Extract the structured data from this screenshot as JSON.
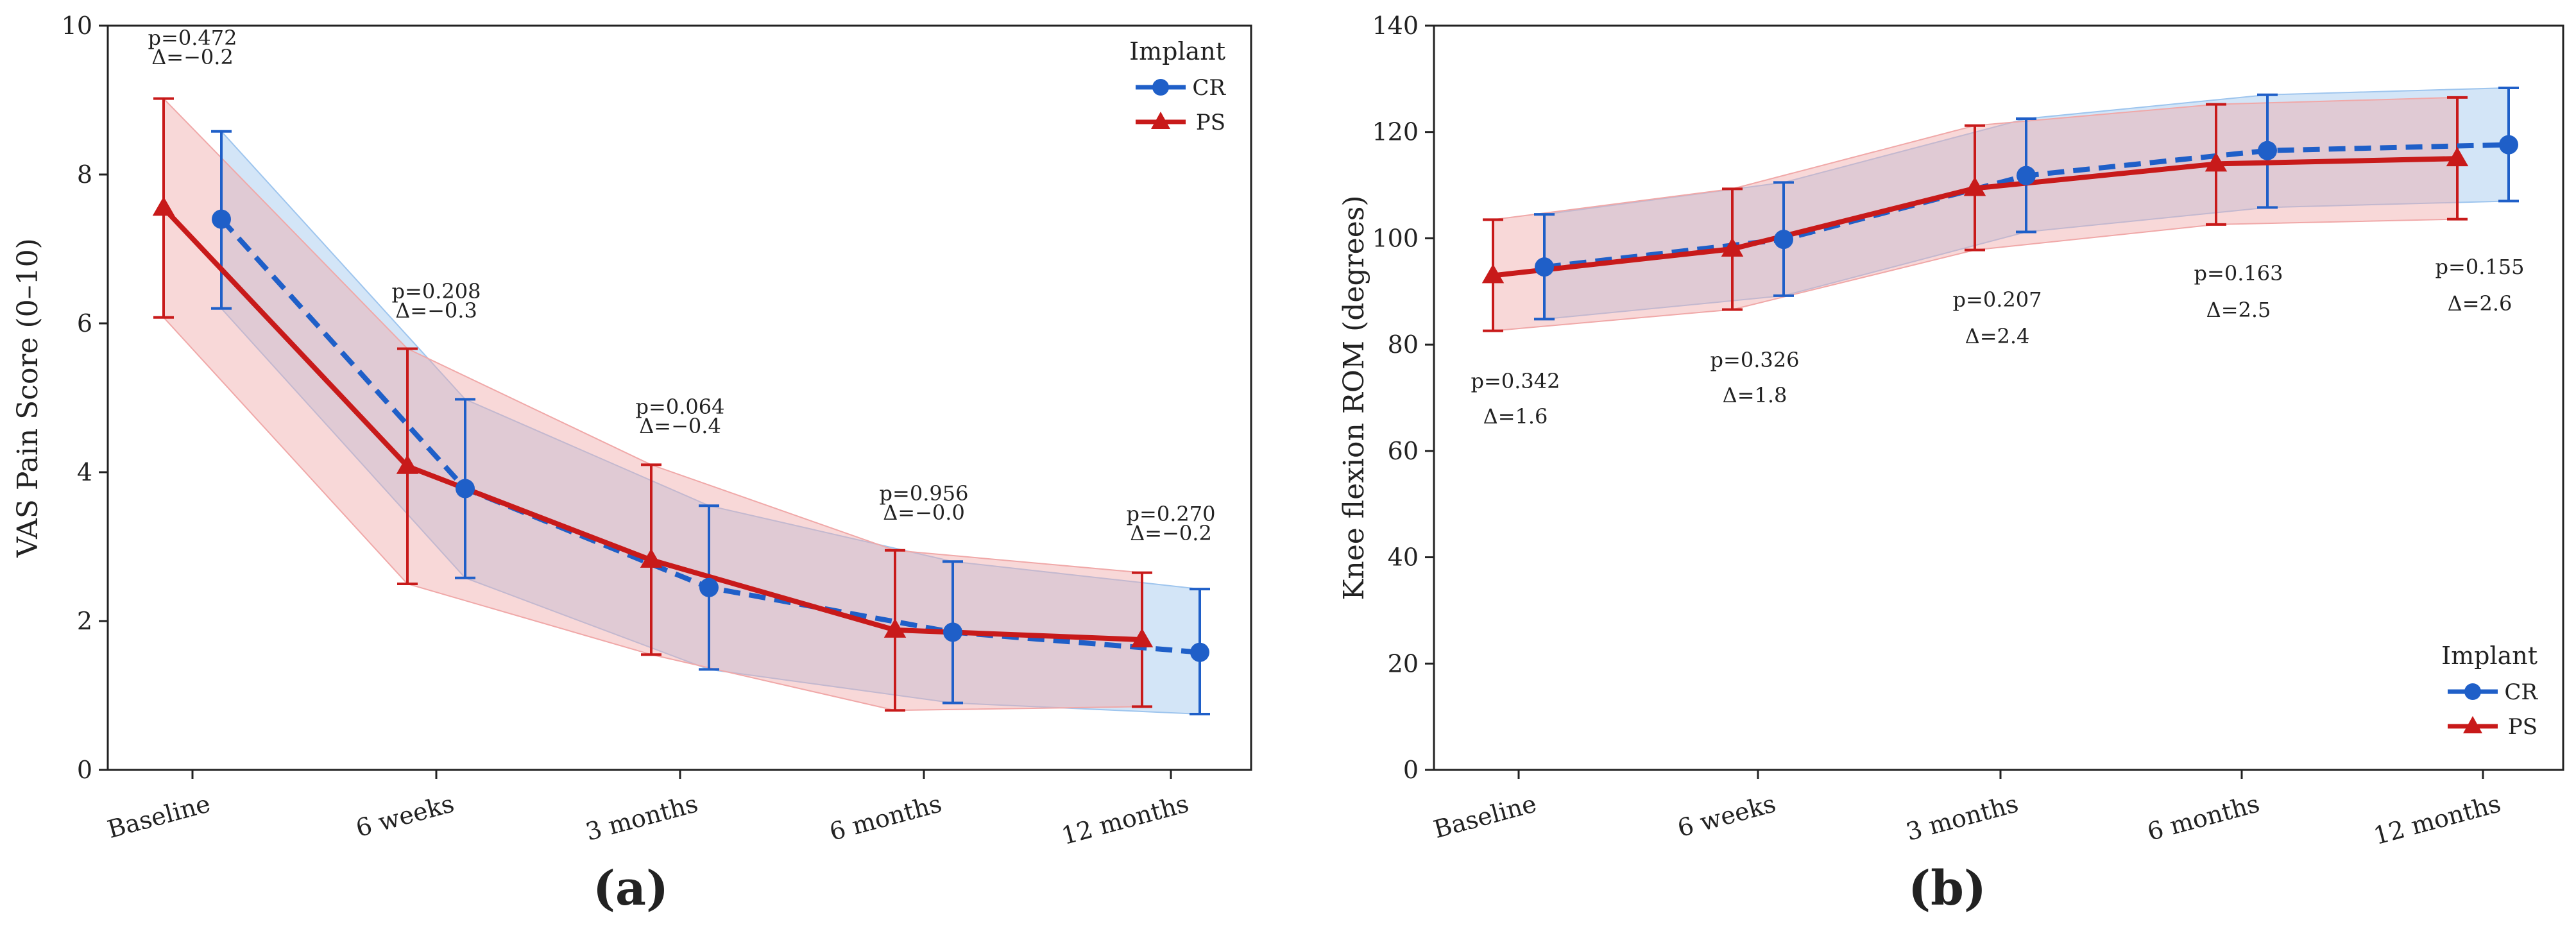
{
  "chart_data": [
    {
      "type": "line",
      "panel_label": "(a)",
      "ylabel": "VAS Pain Score (0–10)",
      "xlabel": "",
      "ylim": [
        0,
        10
      ],
      "yticks": [
        0,
        2,
        4,
        6,
        8,
        10
      ],
      "categories": [
        "Baseline",
        "6 weeks",
        "3 months",
        "6 months",
        "12 months"
      ],
      "series": [
        {
          "name": "CR",
          "color": "#1f5fc8",
          "band_color": "#9ec5ee",
          "marker": "circle",
          "line": "dashed",
          "values": [
            7.4,
            3.78,
            2.45,
            1.85,
            1.58
          ],
          "lower": [
            6.2,
            2.58,
            1.35,
            0.9,
            0.75
          ],
          "upper": [
            8.58,
            4.98,
            3.55,
            2.8,
            2.43
          ]
        },
        {
          "name": "PS",
          "color": "#c81a1a",
          "band_color": "#f0a8a8",
          "marker": "triangle",
          "line": "solid",
          "values": [
            7.55,
            4.08,
            2.82,
            1.88,
            1.75
          ],
          "lower": [
            6.08,
            2.5,
            1.55,
            0.8,
            0.85
          ],
          "upper": [
            9.02,
            5.66,
            4.1,
            2.95,
            2.65
          ]
        }
      ],
      "annotations": [
        {
          "p": "p=0.472",
          "delta": "Δ=−0.2"
        },
        {
          "p": "p=0.208",
          "delta": "Δ=−0.3"
        },
        {
          "p": "p=0.064",
          "delta": "Δ=−0.4"
        },
        {
          "p": "p=0.956",
          "delta": "Δ=−0.0"
        },
        {
          "p": "p=0.270",
          "delta": "Δ=−0.2"
        }
      ],
      "legend": {
        "title": "Implant",
        "position": "top-right"
      }
    },
    {
      "type": "line",
      "panel_label": "(b)",
      "ylabel": "Knee flexion ROM (degrees)",
      "xlabel": "",
      "ylim": [
        0,
        140
      ],
      "yticks": [
        0,
        20,
        40,
        60,
        80,
        100,
        120,
        140
      ],
      "categories": [
        "Baseline",
        "6 weeks",
        "3 months",
        "6 months",
        "12 months"
      ],
      "series": [
        {
          "name": "CR",
          "color": "#1f5fc8",
          "band_color": "#9ec5ee",
          "marker": "circle",
          "line": "dashed",
          "values": [
            94.6,
            99.8,
            111.8,
            116.5,
            117.6
          ],
          "lower": [
            84.8,
            89.2,
            101.2,
            105.8,
            107.0
          ],
          "upper": [
            104.5,
            110.5,
            122.5,
            127.0,
            128.3
          ]
        },
        {
          "name": "PS",
          "color": "#c81a1a",
          "band_color": "#f0a8a8",
          "marker": "triangle",
          "line": "solid",
          "values": [
            93.0,
            98.0,
            109.4,
            114.0,
            115.0
          ],
          "lower": [
            82.6,
            86.6,
            97.8,
            102.6,
            103.6
          ],
          "upper": [
            103.5,
            109.3,
            121.2,
            125.2,
            126.5
          ]
        }
      ],
      "annotations": [
        {
          "p": "p=0.342",
          "delta": "Δ=1.6"
        },
        {
          "p": "p=0.326",
          "delta": "Δ=1.8"
        },
        {
          "p": "p=0.207",
          "delta": "Δ=2.4"
        },
        {
          "p": "p=0.163",
          "delta": "Δ=2.5"
        },
        {
          "p": "p=0.155",
          "delta": "Δ=2.6"
        }
      ],
      "legend": {
        "title": "Implant",
        "position": "bottom-right"
      }
    }
  ]
}
